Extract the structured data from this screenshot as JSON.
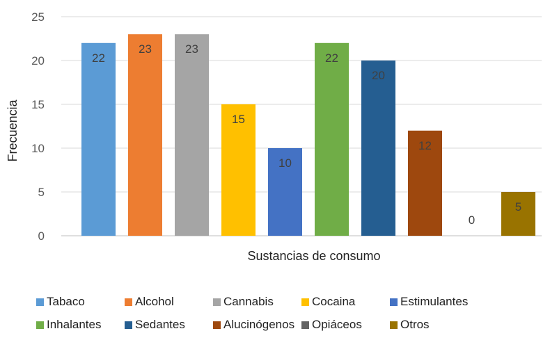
{
  "chart_data": {
    "type": "bar",
    "title": "",
    "xlabel": "Sustancias de consumo",
    "ylabel": "Frecuencia",
    "ylim": [
      0,
      25
    ],
    "yticks": [
      0,
      5,
      10,
      15,
      20,
      25
    ],
    "grid": true,
    "legend_position": "bottom",
    "categories": [
      "Tabaco",
      "Alcohol",
      "Cannabis",
      "Cocaina",
      "Estimulantes",
      "Inhalantes",
      "Sedantes",
      "Alucinógenos",
      "Opiáceos",
      "Otros"
    ],
    "values": [
      22,
      23,
      23,
      15,
      10,
      22,
      20,
      12,
      0,
      5
    ],
    "colors": [
      "#5B9BD5",
      "#ED7D31",
      "#A5A5A5",
      "#FFC000",
      "#4472C4",
      "#70AD47",
      "#255E91",
      "#9E480E",
      "#636363",
      "#997300"
    ]
  }
}
